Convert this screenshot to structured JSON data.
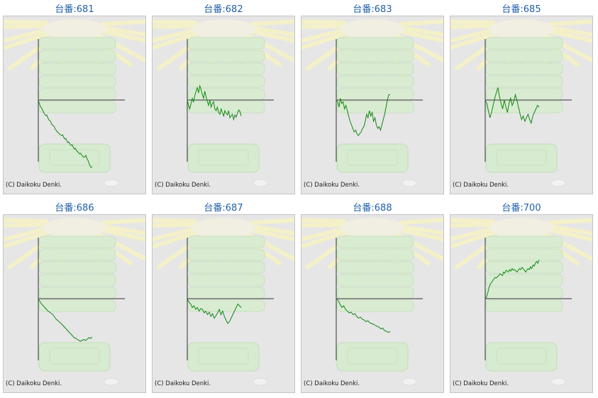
{
  "copyright": "(C) Daikoku Denki.",
  "colors": {
    "title": "#1f5fa8",
    "line": "#118811",
    "axis": "#333333",
    "panel": "#e6e6e6"
  },
  "machines": [
    {
      "title": "台番:681",
      "y": [
        0,
        -10,
        -18,
        -22,
        -28,
        -35,
        -40,
        -44,
        -42,
        -50,
        -56,
        -58,
        -63,
        -70,
        -72,
        -75,
        -82,
        -85,
        -90,
        -92,
        -96,
        -98,
        -100,
        -98,
        -105,
        -110,
        -108,
        -115,
        -120,
        -118,
        -124,
        -128,
        -126,
        -132,
        -138,
        -136,
        -142,
        -145,
        -148,
        -152,
        -150,
        -155,
        -158,
        -162,
        -160,
        -156,
        -165,
        -170,
        -178,
        -186,
        -190,
        -188
      ]
    },
    {
      "title": "台番:682",
      "y": [
        0,
        -15,
        -25,
        -10,
        5,
        -5,
        12,
        25,
        35,
        20,
        40,
        30,
        15,
        5,
        25,
        10,
        -5,
        -15,
        0,
        -20,
        -10,
        -5,
        -25,
        -30,
        -20,
        -35,
        -40,
        -25,
        -35,
        -45,
        -30,
        -38,
        -42,
        -30,
        -50,
        -45,
        -40,
        -55,
        -42,
        -48,
        -38,
        -28,
        -32,
        -45
      ]
    },
    {
      "title": "台番:683",
      "y": [
        0,
        -5,
        -20,
        5,
        -10,
        -5,
        -25,
        -15,
        -30,
        -45,
        -60,
        -70,
        -80,
        -90,
        -85,
        -95,
        -100,
        -95,
        -90,
        -80,
        -75,
        -60,
        -40,
        -50,
        -30,
        -45,
        -35,
        -60,
        -50,
        -70,
        -80,
        -75,
        -85,
        -70,
        -55,
        -40,
        -20,
        0,
        15,
        15
      ]
    },
    {
      "title": "台番:685",
      "y": [
        0,
        -10,
        -30,
        -50,
        -35,
        -15,
        5,
        20,
        35,
        10,
        -10,
        -25,
        0,
        -20,
        -35,
        -10,
        5,
        -15,
        -5,
        15,
        0,
        -20,
        -40,
        -55,
        -45,
        -60,
        -50,
        -40,
        -55,
        -65,
        -45,
        -35,
        -25,
        -15,
        -20
      ]
    },
    {
      "title": "台番:686",
      "y": [
        0,
        -8,
        -15,
        -20,
        -25,
        -30,
        -35,
        -38,
        -42,
        -45,
        -52,
        -58,
        -62,
        -66,
        -70,
        -75,
        -80,
        -85,
        -90,
        -95,
        -100,
        -105,
        -110,
        -112,
        -115,
        -118,
        -120,
        -117,
        -115,
        -118,
        -114,
        -110,
        -112,
        -108
      ]
    },
    {
      "title": "台番:687",
      "y": [
        0,
        -10,
        -15,
        -25,
        -20,
        -30,
        -25,
        -35,
        -28,
        -30,
        -40,
        -35,
        -45,
        -38,
        -50,
        -42,
        -55,
        -48,
        -40,
        -30,
        -45,
        -35,
        -50,
        -60,
        -70,
        -65,
        -55,
        -45,
        -35,
        -25,
        -15,
        -20,
        -25
      ]
    },
    {
      "title": "台番:688",
      "y": [
        0,
        -5,
        -15,
        -25,
        -20,
        -30,
        -35,
        -40,
        -38,
        -45,
        -42,
        -50,
        -55,
        -52,
        -58,
        -60,
        -65,
        -62,
        -68,
        -70,
        -72,
        -75,
        -78,
        -80,
        -85,
        -83,
        -90,
        -92,
        -95,
        -93
      ]
    },
    {
      "title": "台番:700",
      "y": [
        0,
        5,
        15,
        30,
        40,
        45,
        50,
        55,
        60,
        58,
        62,
        65,
        70,
        68,
        65,
        75,
        72,
        80,
        78,
        75,
        82,
        78,
        85,
        80,
        82,
        78,
        75,
        80,
        85,
        82,
        88,
        85,
        80,
        75,
        80,
        85,
        82,
        90,
        85,
        95,
        92,
        100,
        105,
        100,
        110
      ]
    }
  ]
}
